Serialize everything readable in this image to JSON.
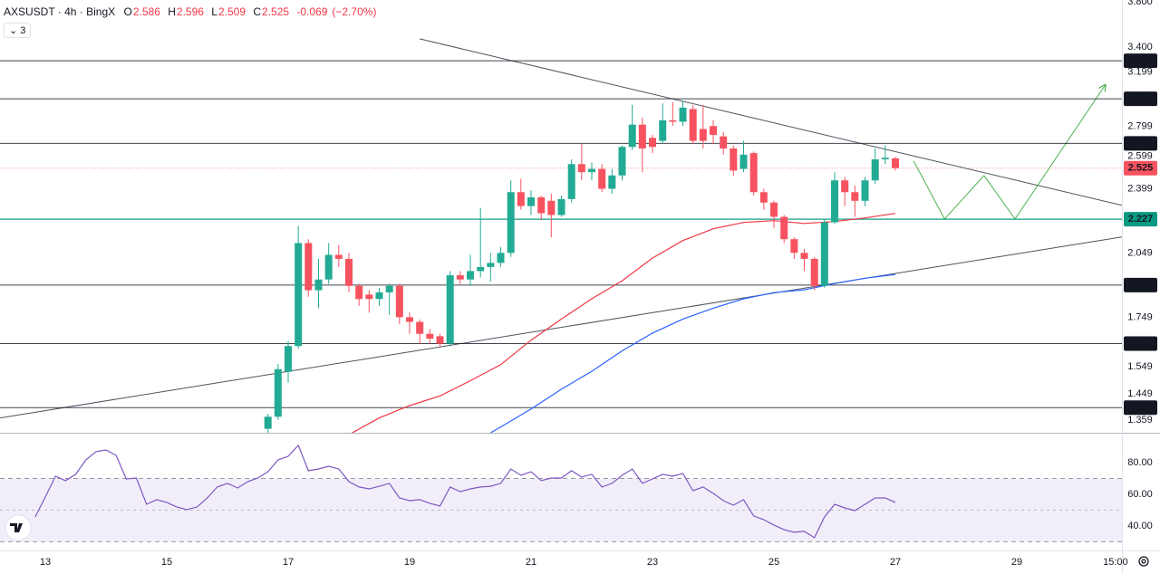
{
  "chart_data": [
    {
      "type": "candlestick",
      "title": "AXSUSDT · 4h · BingX",
      "ohlc_labels": [
        "O",
        "H",
        "L",
        "C"
      ],
      "change": -0.069,
      "change_percent": {
        "value": -2.7,
        "label": "(−2.70%)"
      },
      "indicators_count": 3,
      "log_scale": true,
      "grid": false,
      "up_color": "#22ab94",
      "down_color": "#f7525f",
      "xlim": [
        12.254,
        30.731
      ],
      "ylim": [
        1.317,
        3.818
      ],
      "yticks": [
        {
          "value": 3.8,
          "label": "3.800"
        },
        {
          "value": 3.4,
          "label": "3.400"
        },
        3.199,
        2.799,
        2.599,
        2.399,
        2.049,
        1.749,
        1.549,
        1.449,
        1.359
      ],
      "x": [
        16.667,
        16.833,
        17,
        17.167,
        17.333,
        17.5,
        17.667,
        17.833,
        18,
        18.167,
        18.333,
        18.5,
        18.667,
        18.833,
        19,
        19.167,
        19.333,
        19.5,
        19.667,
        19.833,
        20,
        20.167,
        20.333,
        20.5,
        20.667,
        20.833,
        21,
        21.167,
        21.333,
        21.5,
        21.667,
        21.833,
        22,
        22.167,
        22.333,
        22.5,
        22.667,
        22.833,
        23,
        23.167,
        23.333,
        23.5,
        23.667,
        23.833,
        24,
        24.167,
        24.333,
        24.5,
        24.667,
        24.833,
        25,
        25.167,
        25.333,
        25.5,
        25.667,
        25.833,
        26,
        26.167,
        26.333,
        26.5,
        26.667,
        26.833,
        27
      ],
      "open": [
        1.33,
        1.37,
        1.53,
        1.63,
        2.1,
        1.87,
        1.92,
        2.04,
        2.02,
        1.89,
        1.85,
        1.83,
        1.86,
        1.89,
        1.75,
        1.73,
        1.68,
        1.67,
        1.64,
        1.94,
        1.92,
        1.96,
        1.98,
        2.0,
        2.05,
        2.38,
        2.3,
        2.35,
        2.33,
        2.25,
        2.34,
        2.55,
        2.5,
        2.52,
        2.4,
        2.48,
        2.66,
        2.81,
        2.72,
        2.7,
        2.84,
        2.83,
        2.92,
        2.78,
        2.8,
        2.73,
        2.65,
        2.52,
        2.62,
        2.38,
        2.32,
        2.24,
        2.12,
        2.05,
        2.02,
        1.89,
        2.21,
        2.45,
        2.38,
        2.33,
        2.45,
        2.58,
        2.586
      ],
      "high": [
        1.38,
        1.56,
        1.65,
        2.19,
        2.12,
        2.02,
        2.1,
        2.09,
        2.05,
        1.9,
        1.87,
        1.88,
        1.9,
        1.9,
        1.77,
        1.74,
        1.7,
        1.68,
        1.96,
        1.96,
        2.04,
        2.29,
        2.05,
        2.08,
        2.45,
        2.46,
        2.39,
        2.36,
        2.37,
        2.36,
        2.58,
        2.68,
        2.56,
        2.55,
        2.52,
        2.67,
        2.95,
        2.86,
        2.74,
        2.96,
        2.97,
        2.98,
        2.95,
        2.95,
        2.84,
        2.76,
        2.67,
        2.7,
        2.63,
        2.4,
        2.33,
        2.25,
        2.13,
        2.07,
        2.03,
        2.23,
        2.5,
        2.47,
        2.42,
        2.47,
        2.65,
        2.67,
        2.596
      ],
      "low": [
        1.31,
        1.36,
        1.49,
        1.62,
        1.84,
        1.79,
        1.9,
        1.98,
        1.86,
        1.8,
        1.77,
        1.8,
        1.76,
        1.72,
        1.68,
        1.64,
        1.64,
        1.63,
        1.63,
        1.9,
        1.89,
        1.93,
        1.91,
        1.98,
        2.03,
        2.28,
        2.25,
        2.22,
        2.13,
        2.24,
        2.32,
        2.45,
        2.45,
        2.38,
        2.37,
        2.45,
        2.64,
        2.5,
        2.62,
        2.68,
        2.8,
        2.8,
        2.68,
        2.65,
        2.68,
        2.61,
        2.48,
        2.5,
        2.36,
        2.28,
        2.18,
        2.1,
        2.02,
        1.96,
        1.87,
        1.88,
        2.2,
        2.3,
        2.24,
        2.3,
        2.43,
        2.55,
        2.509
      ],
      "close": [
        1.37,
        1.54,
        1.63,
        2.1,
        1.87,
        1.92,
        2.04,
        2.02,
        1.89,
        1.83,
        1.83,
        1.86,
        1.89,
        1.75,
        1.73,
        1.68,
        1.66,
        1.64,
        1.94,
        1.92,
        1.96,
        1.98,
        2.0,
        2.05,
        2.38,
        2.3,
        2.35,
        2.26,
        2.25,
        2.34,
        2.55,
        2.5,
        2.52,
        2.4,
        2.48,
        2.66,
        2.81,
        2.65,
        2.66,
        2.84,
        2.83,
        2.93,
        2.7,
        2.7,
        2.74,
        2.65,
        2.51,
        2.61,
        2.38,
        2.32,
        2.24,
        2.12,
        2.05,
        2.02,
        1.89,
        2.21,
        2.45,
        2.38,
        2.33,
        2.45,
        2.58,
        2.59,
        2.525
      ],
      "moving_averages": [
        {
          "color": "#f23645",
          "x": [
            18,
            18.5,
            19,
            19.5,
            20,
            20.5,
            21,
            21.5,
            22,
            22.5,
            23,
            23.5,
            24,
            24.5,
            25,
            25.5,
            26,
            26.5,
            27
          ],
          "values": [
            1.311,
            1.366,
            1.408,
            1.442,
            1.497,
            1.557,
            1.654,
            1.742,
            1.831,
            1.914,
            2.024,
            2.113,
            2.175,
            2.209,
            2.219,
            2.204,
            2.214,
            2.234,
            2.259
          ]
        },
        {
          "color": "#2962ff",
          "x": [
            20.333,
            20.5,
            21,
            21.5,
            22,
            22.5,
            23,
            23.5,
            24,
            24.5,
            25,
            25.5,
            26,
            26.5,
            27
          ],
          "values": [
            1.317,
            1.336,
            1.396,
            1.466,
            1.532,
            1.611,
            1.683,
            1.742,
            1.789,
            1.831,
            1.859,
            1.872,
            1.901,
            1.926,
            1.944
          ]
        }
      ],
      "price_lines": [
        {
          "value": 3.288,
          "color": "#131722"
        },
        {
          "value": 2.994,
          "color": "#131722"
        },
        {
          "value": 2.683,
          "color": "#131722"
        },
        {
          "value": 2.525,
          "color": "#f7525f"
        },
        {
          "value": 2.227,
          "color": "#089981"
        },
        {
          "value": 1.894,
          "color": "#131722"
        },
        {
          "value": 1.64,
          "color": "#131722"
        },
        {
          "value": 1.401,
          "color": "#131722"
        }
      ],
      "trendlines": [
        {
          "color": "#50535e",
          "x": [
            19.164,
            30.731
          ],
          "y": [
            3.47,
            2.304
          ]
        },
        {
          "color": "#50535e",
          "x": [
            12.254,
            30.731
          ],
          "y": [
            1.366,
            2.132
          ]
        },
        {
          "color": "#4caf50",
          "x": [
            27.3,
            27.81,
            28.46,
            28.97,
            30.46
          ],
          "y": [
            2.57,
            2.228,
            2.48,
            2.228,
            3.1
          ],
          "arrow": true
        }
      ]
    },
    {
      "type": "line",
      "color": "#7e57c2",
      "xlim": [
        12.254,
        30.731
      ],
      "ylim": [
        25.1,
        98.3
      ],
      "yticks": [
        {
          "value": 80,
          "label": "80.00"
        },
        {
          "value": 60,
          "label": "60.00"
        },
        {
          "value": 40,
          "label": "40.00"
        }
      ],
      "band": [
        30,
        70
      ],
      "midline": 50,
      "xticks": [
        13,
        15,
        17,
        19,
        21,
        23,
        25,
        27,
        29,
        {
          "value": 30.625,
          "label": "15:00"
        }
      ],
      "x": [
        12.833,
        13,
        13.167,
        13.333,
        13.5,
        13.667,
        13.833,
        14,
        14.167,
        14.333,
        14.5,
        14.667,
        14.833,
        15,
        15.167,
        15.333,
        15.5,
        15.667,
        15.833,
        16,
        16.167,
        16.333,
        16.5,
        16.667,
        16.833,
        17,
        17.167,
        17.333,
        17.5,
        17.667,
        17.833,
        18,
        18.167,
        18.333,
        18.5,
        18.667,
        18.833,
        19,
        19.167,
        19.333,
        19.5,
        19.667,
        19.833,
        20,
        20.167,
        20.333,
        20.5,
        20.667,
        20.833,
        21,
        21.167,
        21.333,
        21.5,
        21.667,
        21.833,
        22,
        22.167,
        22.333,
        22.5,
        22.667,
        22.833,
        23,
        23.167,
        23.333,
        23.5,
        23.667,
        23.833,
        24,
        24.167,
        24.333,
        24.5,
        24.667,
        24.833,
        25,
        25.167,
        25.333,
        25.5,
        25.667,
        25.833,
        26,
        26.167,
        26.333,
        26.5,
        26.667,
        26.833,
        27
      ],
      "values": [
        45.7,
        58.3,
        71.4,
        68.6,
        72.6,
        81.7,
        86.9,
        88.0,
        84.6,
        69.7,
        70.3,
        53.7,
        56.6,
        54.9,
        52.0,
        50.3,
        52.0,
        57.7,
        64.6,
        66.9,
        64.0,
        68.0,
        70.3,
        74.3,
        81.7,
        84.0,
        90.9,
        74.9,
        76.0,
        77.7,
        76.0,
        68.0,
        64.6,
        63.4,
        65.1,
        66.9,
        57.7,
        56.0,
        56.6,
        54.3,
        52.6,
        64.6,
        61.7,
        63.4,
        64.6,
        65.1,
        66.9,
        76.0,
        72.0,
        74.3,
        68.6,
        70.3,
        70.3,
        74.9,
        70.9,
        72.6,
        64.6,
        66.9,
        72.0,
        76.0,
        66.9,
        69.7,
        72.6,
        71.4,
        73.1,
        62.3,
        64.6,
        60.6,
        56.0,
        53.1,
        56.6,
        46.3,
        44.0,
        40.6,
        37.7,
        36.0,
        36.6,
        32.6,
        45.7,
        53.7,
        51.4,
        49.7,
        53.7,
        57.7,
        57.7,
        54.9
      ]
    }
  ]
}
